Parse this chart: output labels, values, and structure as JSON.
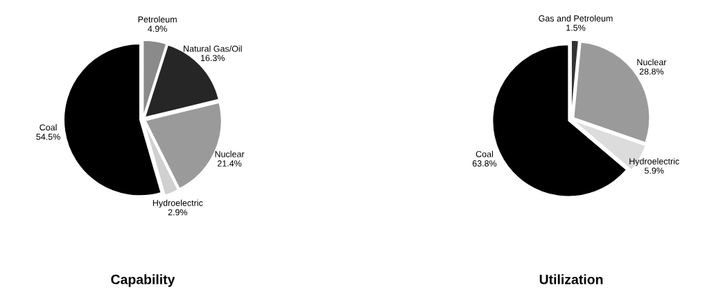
{
  "chart_data": [
    {
      "type": "pie",
      "title": "Capability",
      "categories": [
        "Petroleum",
        "Natural Gas/Oil",
        "Nuclear",
        "Hydroelectric",
        "Coal"
      ],
      "values": [
        4.9,
        16.3,
        21.4,
        2.9,
        54.5
      ],
      "colors": [
        "#8a8a8a",
        "#262626",
        "#9a9a9a",
        "#d0d0d0",
        "#000000"
      ],
      "value_labels": [
        "4.9%",
        "16.3%",
        "21.4%",
        "2.9%",
        "54.5%"
      ]
    },
    {
      "type": "pie",
      "title": "Utilization",
      "categories": [
        "Gas and Petroleum",
        "Nuclear",
        "Hydroelectric",
        "Coal"
      ],
      "values": [
        1.5,
        28.8,
        5.9,
        63.8
      ],
      "colors": [
        "#333333",
        "#9a9a9a",
        "#dcdcdc",
        "#000000"
      ],
      "value_labels": [
        "1.5%",
        "28.8%",
        "5.9%",
        "63.8%"
      ]
    }
  ]
}
